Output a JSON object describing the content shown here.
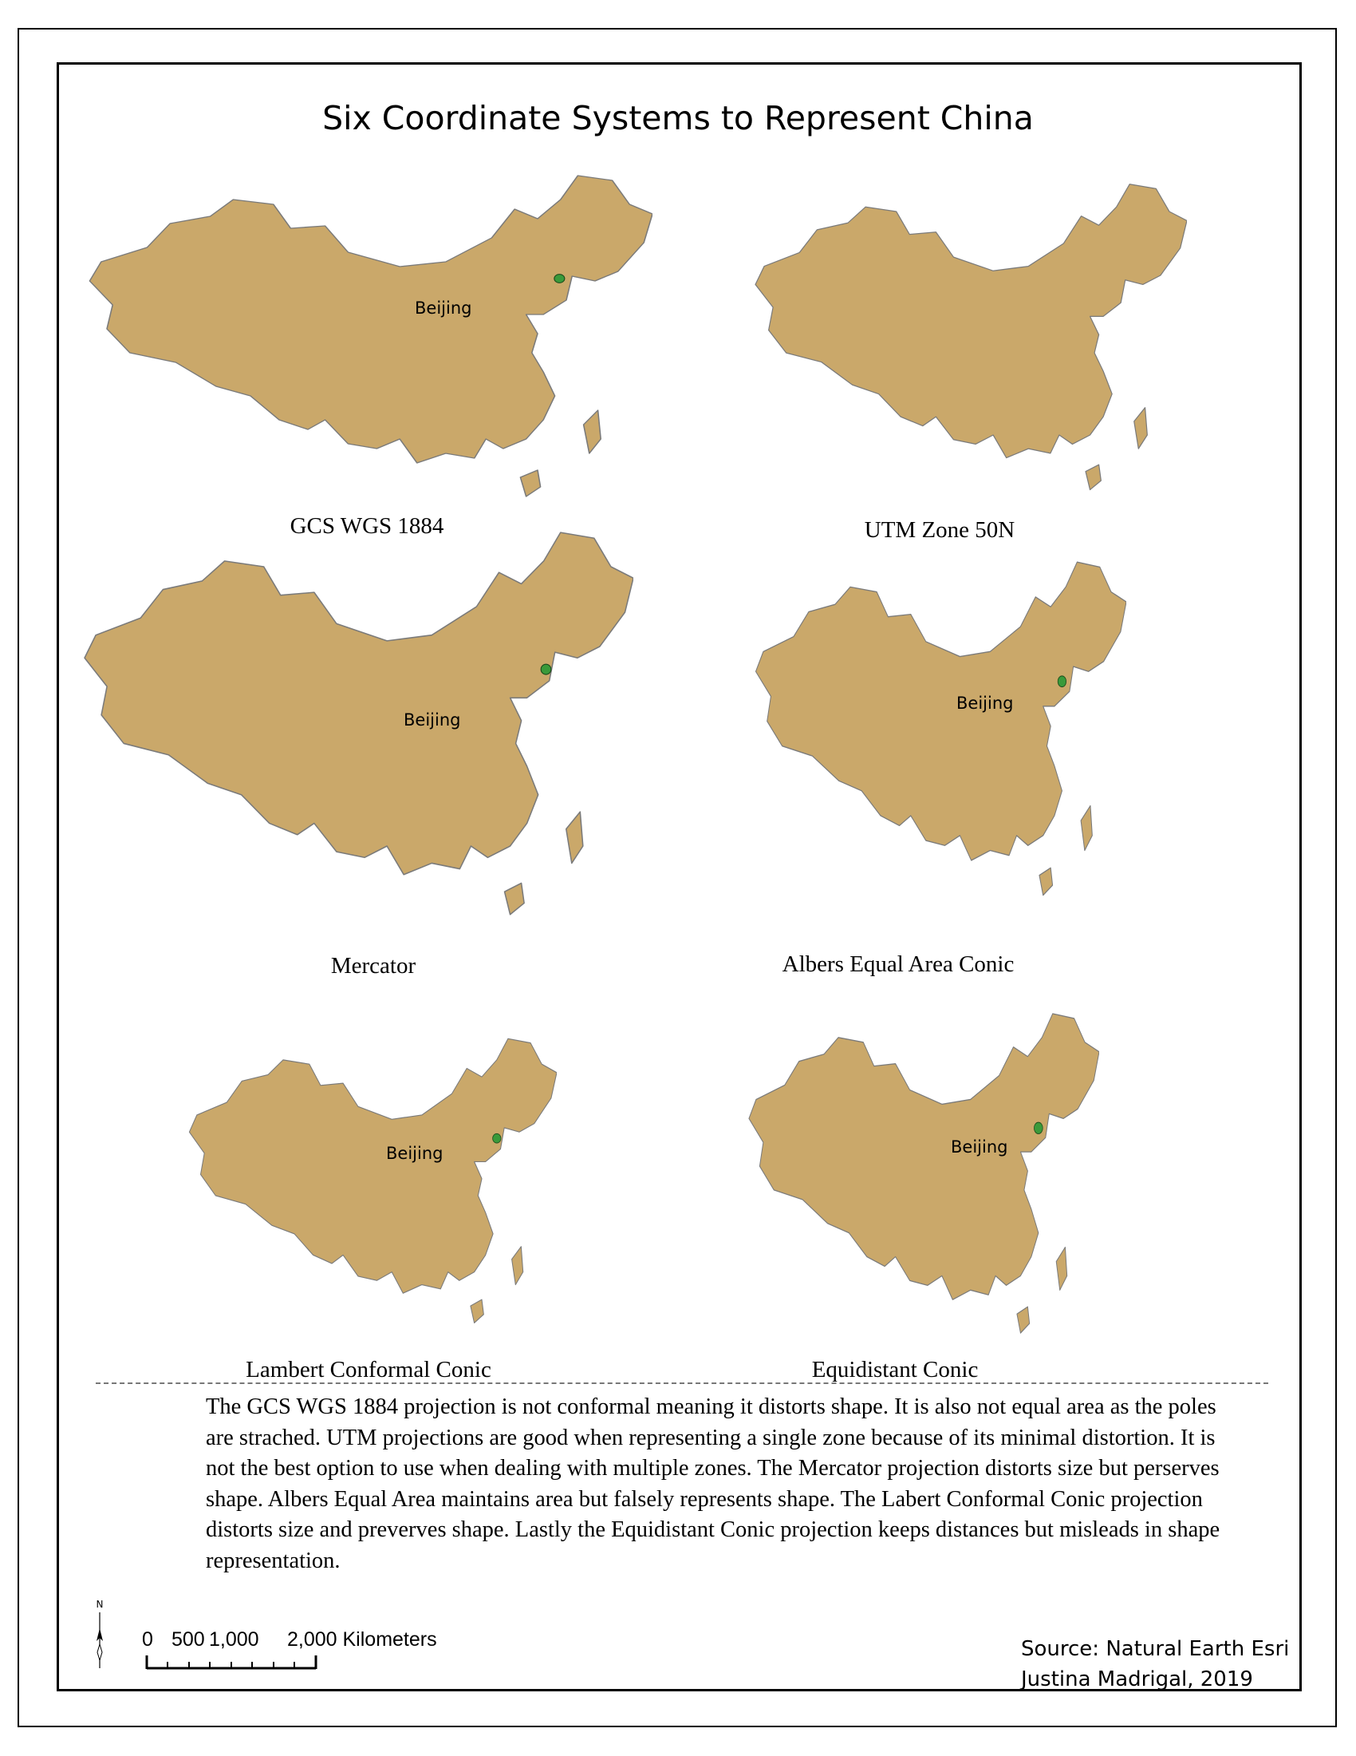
{
  "title": "Six Coordinate Systems to Represent China",
  "city_label": "Beijing",
  "panels": [
    {
      "id": "gcs",
      "label": "GCS WGS 1884",
      "has_city": true
    },
    {
      "id": "utm",
      "label": "UTM Zone 50N",
      "has_city": false
    },
    {
      "id": "mercator",
      "label": "Mercator",
      "has_city": true
    },
    {
      "id": "albers",
      "label": "Albers Equal Area Conic",
      "has_city": true
    },
    {
      "id": "lambert",
      "label": "Lambert Conformal Conic",
      "has_city": true
    },
    {
      "id": "equidistant",
      "label": "Equidistant Conic",
      "has_city": true
    }
  ],
  "description": "The GCS WGS 1884 projection is not conformal meaning it distorts shape. It is also not equal area as the poles are strached. UTM projections are good when representing a single zone because of its minimal distortion. It is not the best option to use when dealing with multiple zones. The Mercator projection distorts size but perserves shape. Albers Equal Area maintains area but falsely represents shape. The Labert Conformal Conic projection distorts size and preverves shape. Lastly the Equidistant Conic projection keeps distances but misleads in shape representation.",
  "north_label": "N",
  "scale": {
    "ticks": [
      "0",
      "500",
      "1,000",
      "2,000 Kilometers"
    ]
  },
  "source_line": "Source: Natural Earth Esri",
  "author_line": "Justina Madrigal, 2019",
  "colors": {
    "land": "#caa86a",
    "border": "#7a7a7a",
    "city_marker": "#3a9a3a"
  }
}
